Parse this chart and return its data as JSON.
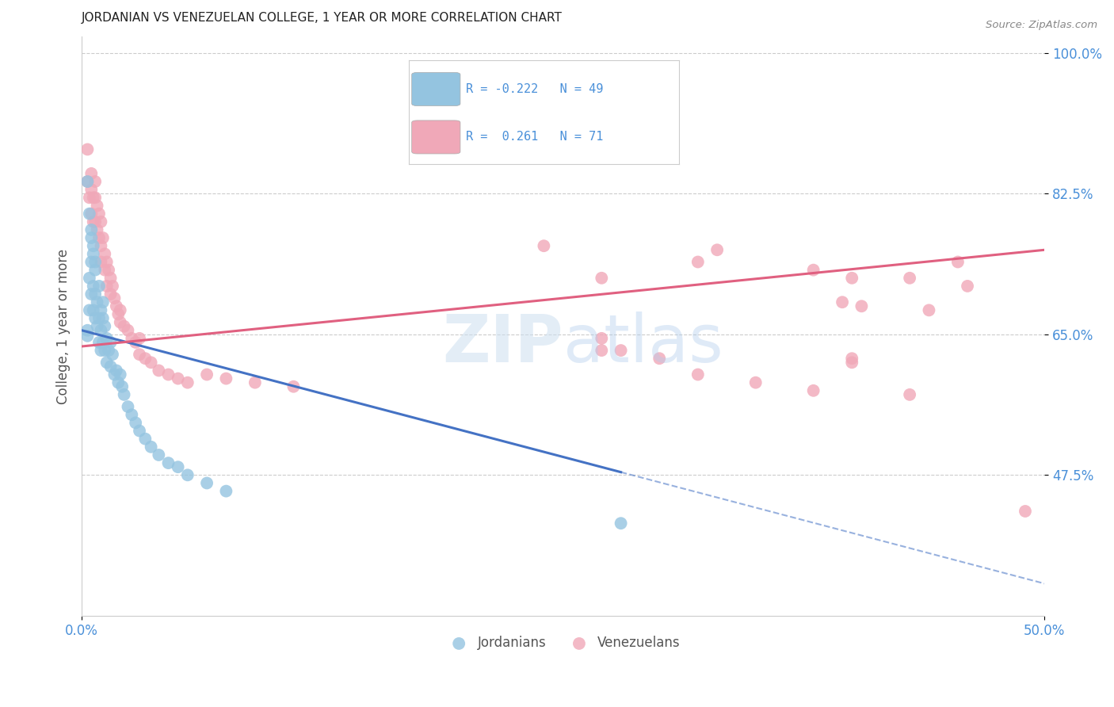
{
  "title": "JORDANIAN VS VENEZUELAN COLLEGE, 1 YEAR OR MORE CORRELATION CHART",
  "source": "Source: ZipAtlas.com",
  "ylabel_label": "College, 1 year or more",
  "xlim": [
    0.0,
    0.5
  ],
  "ylim": [
    0.3,
    1.02
  ],
  "xtick_positions": [
    0.0,
    0.5
  ],
  "xtick_labels": [
    "0.0%",
    "50.0%"
  ],
  "ytick_values": [
    1.0,
    0.825,
    0.65,
    0.475
  ],
  "ytick_labels": [
    "100.0%",
    "82.5%",
    "65.0%",
    "47.5%"
  ],
  "blue_color": "#94c4e0",
  "pink_color": "#f0a8b8",
  "line_blue_color": "#4472c4",
  "line_pink_color": "#e06080",
  "blue_line_solid_end": 0.28,
  "blue_line_x0": 0.0,
  "blue_line_x1": 0.5,
  "blue_line_y0": 0.655,
  "blue_line_y1": 0.34,
  "pink_line_x0": 0.0,
  "pink_line_x1": 0.5,
  "pink_line_y0": 0.635,
  "pink_line_y1": 0.755,
  "jordanians_x": [
    0.003,
    0.003,
    0.004,
    0.004,
    0.005,
    0.005,
    0.005,
    0.006,
    0.006,
    0.006,
    0.007,
    0.007,
    0.007,
    0.008,
    0.008,
    0.009,
    0.009,
    0.01,
    0.01,
    0.01,
    0.011,
    0.011,
    0.012,
    0.012,
    0.013,
    0.013,
    0.014,
    0.015,
    0.015,
    0.016,
    0.017,
    0.018,
    0.019,
    0.02,
    0.021,
    0.022,
    0.024,
    0.026,
    0.028,
    0.03,
    0.033,
    0.036,
    0.04,
    0.045,
    0.05,
    0.055,
    0.065,
    0.075,
    0.28
  ],
  "jordanians_y": [
    0.655,
    0.648,
    0.72,
    0.68,
    0.77,
    0.74,
    0.7,
    0.75,
    0.71,
    0.68,
    0.73,
    0.7,
    0.67,
    0.69,
    0.66,
    0.67,
    0.64,
    0.68,
    0.655,
    0.63,
    0.67,
    0.64,
    0.66,
    0.63,
    0.645,
    0.615,
    0.63,
    0.64,
    0.61,
    0.625,
    0.6,
    0.605,
    0.59,
    0.6,
    0.585,
    0.575,
    0.56,
    0.55,
    0.54,
    0.53,
    0.52,
    0.51,
    0.5,
    0.49,
    0.485,
    0.475,
    0.465,
    0.455,
    0.415
  ],
  "jordanians_y_high": [
    0.84,
    0.8,
    0.78,
    0.76,
    0.74,
    0.71,
    0.69
  ],
  "jordanians_x_high": [
    0.003,
    0.004,
    0.005,
    0.006,
    0.007,
    0.009,
    0.011
  ],
  "venezuelans_x": [
    0.003,
    0.003,
    0.004,
    0.005,
    0.005,
    0.005,
    0.006,
    0.006,
    0.007,
    0.007,
    0.007,
    0.008,
    0.008,
    0.009,
    0.009,
    0.01,
    0.01,
    0.01,
    0.011,
    0.012,
    0.012,
    0.013,
    0.013,
    0.014,
    0.015,
    0.015,
    0.016,
    0.017,
    0.018,
    0.019,
    0.02,
    0.02,
    0.022,
    0.024,
    0.026,
    0.028,
    0.03,
    0.03,
    0.033,
    0.036,
    0.04,
    0.045,
    0.05,
    0.055,
    0.065,
    0.075,
    0.09,
    0.11,
    0.24,
    0.27,
    0.32,
    0.33,
    0.38,
    0.395,
    0.4,
    0.405,
    0.43,
    0.44,
    0.455,
    0.46,
    0.49,
    0.27,
    0.32,
    0.38,
    0.4,
    0.43,
    0.27,
    0.28,
    0.3,
    0.35,
    0.4
  ],
  "venezuelans_y": [
    0.88,
    0.84,
    0.82,
    0.85,
    0.83,
    0.8,
    0.82,
    0.79,
    0.84,
    0.82,
    0.79,
    0.81,
    0.78,
    0.8,
    0.77,
    0.79,
    0.76,
    0.74,
    0.77,
    0.75,
    0.73,
    0.74,
    0.71,
    0.73,
    0.72,
    0.7,
    0.71,
    0.695,
    0.685,
    0.675,
    0.68,
    0.665,
    0.66,
    0.655,
    0.645,
    0.64,
    0.645,
    0.625,
    0.62,
    0.615,
    0.605,
    0.6,
    0.595,
    0.59,
    0.6,
    0.595,
    0.59,
    0.585,
    0.76,
    0.72,
    0.74,
    0.755,
    0.73,
    0.69,
    0.72,
    0.685,
    0.72,
    0.68,
    0.74,
    0.71,
    0.43,
    0.63,
    0.6,
    0.58,
    0.615,
    0.575,
    0.645,
    0.63,
    0.62,
    0.59,
    0.62
  ]
}
